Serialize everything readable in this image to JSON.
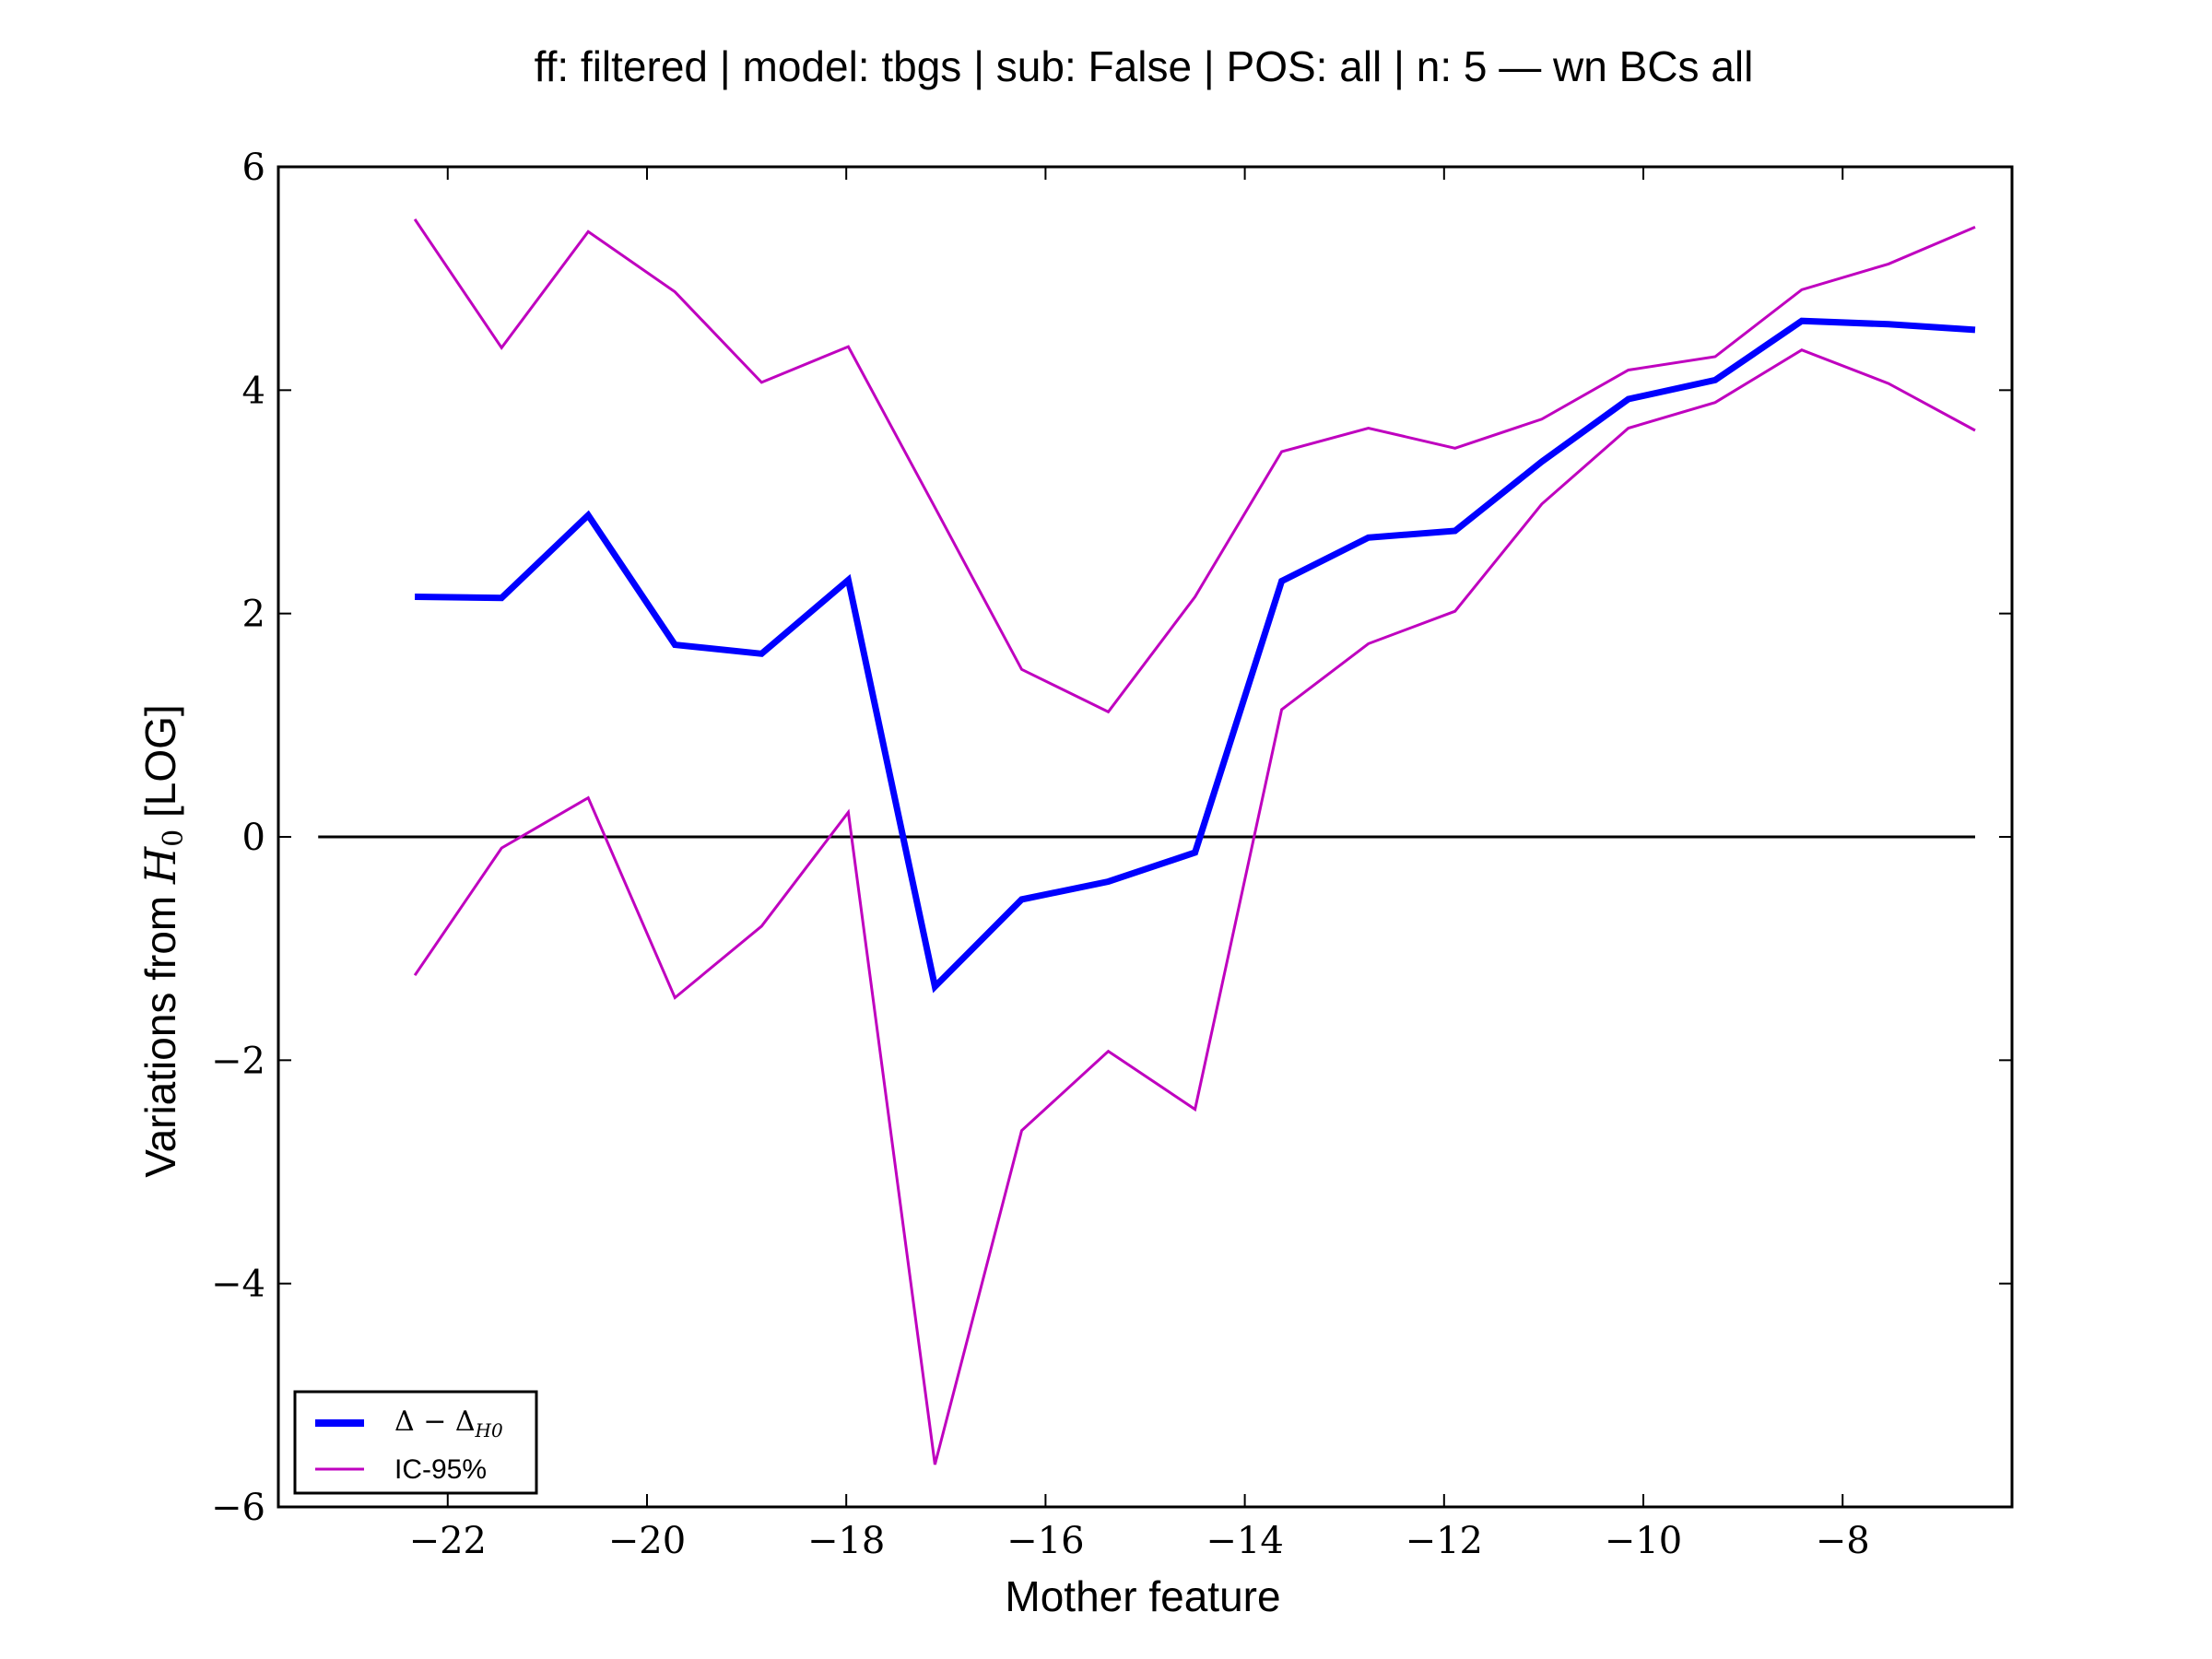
{
  "chart_data": {
    "type": "line",
    "title": "ff: filtered | model: tbgs | sub: False | POS: all | n: 5 — wn BCs all",
    "xlabel": "Mother feature",
    "ylabel_prefix": "Variations from ",
    "ylabel_math": "H",
    "ylabel_math_sub": "0",
    "ylabel_suffix": " [LOG]",
    "xlim": [
      -23.7,
      -6.3
    ],
    "ylim": [
      -6,
      6
    ],
    "xticks": [
      -22,
      -20,
      -18,
      -16,
      -14,
      -12,
      -10,
      -8
    ],
    "xtick_labels": [
      "−22",
      "−20",
      "−18",
      "−16",
      "−14",
      "−12",
      "−10",
      "−8"
    ],
    "yticks": [
      -6,
      -4,
      -2,
      0,
      2,
      4,
      6
    ],
    "ytick_labels": [
      "−6",
      "−4",
      "−2",
      "0",
      "2",
      "4",
      "6"
    ],
    "x": [
      -22.33,
      -21.46,
      -20.59,
      -19.72,
      -18.85,
      -17.98,
      -17.11,
      -16.24,
      -15.37,
      -14.5,
      -13.63,
      -12.76,
      -11.89,
      -11.02,
      -10.15,
      -9.28,
      -8.41,
      -7.54,
      -6.67
    ],
    "series": [
      {
        "name": "Δ − Δ",
        "name_sub": "H0",
        "color": "#0000ff",
        "values": [
          2.15,
          2.14,
          2.88,
          1.72,
          1.64,
          2.3,
          -1.34,
          -0.56,
          -0.4,
          -0.14,
          2.29,
          2.68,
          2.74,
          3.36,
          3.92,
          4.09,
          4.62,
          4.59,
          4.54
        ]
      },
      {
        "name": "IC-95%",
        "color": "#bf00bf",
        "values": [
          5.53,
          4.38,
          5.42,
          4.88,
          4.07,
          4.39,
          2.95,
          1.5,
          1.12,
          2.15,
          3.45,
          3.66,
          3.48,
          3.74,
          4.18,
          4.3,
          4.9,
          5.13,
          5.46
        ]
      },
      {
        "name": "IC-95% lower",
        "color": "#bf00bf",
        "values": [
          -1.24,
          -0.1,
          0.35,
          -1.44,
          -0.8,
          0.22,
          -5.62,
          -2.63,
          -1.92,
          -2.44,
          1.14,
          1.73,
          2.02,
          2.98,
          3.66,
          3.89,
          4.36,
          4.06,
          3.64
        ]
      }
    ],
    "reference_line": {
      "y": 0,
      "x_range": [
        -23.3,
        -6.67
      ],
      "color": "#000000"
    },
    "legend": {
      "placement": "lower-left",
      "entries": [
        {
          "label": "Δ − Δ",
          "label_sub": "H0",
          "color": "#0000ff"
        },
        {
          "label": "IC-95%",
          "color": "#bf00bf"
        }
      ]
    },
    "grid": false
  }
}
